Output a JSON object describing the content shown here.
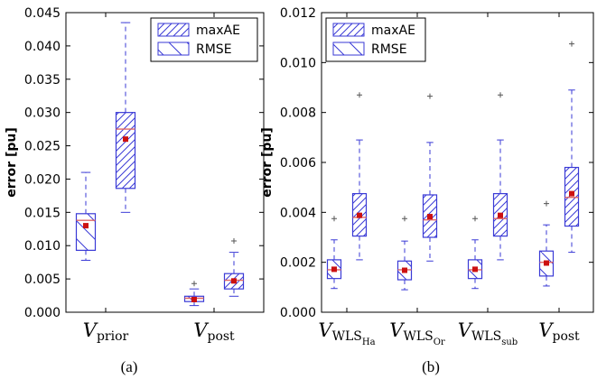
{
  "figure": {
    "colors": {
      "box": "#3a3ad6",
      "median": "#e06666",
      "mean": "#cc1111",
      "outlier": "#555555"
    }
  },
  "chart_data": [
    {
      "type": "box",
      "panel_label": "(a)",
      "ylabel": "error [pu]",
      "ylim": [
        0,
        0.045
      ],
      "yticks": [
        "0.000",
        "0.005",
        "0.010",
        "0.015",
        "0.020",
        "0.025",
        "0.030",
        "0.035",
        "0.040",
        "0.045"
      ],
      "legend": {
        "position": "top-right",
        "entries": [
          "maxAE",
          "RMSE"
        ]
      },
      "categories": [
        {
          "base": "V",
          "sub": "prior",
          "subsub": ""
        },
        {
          "base": "V",
          "sub": "post",
          "subsub": ""
        }
      ],
      "series": [
        {
          "name": "RMSE",
          "boxes": [
            {
              "whislo": 0.0078,
              "q1": 0.0093,
              "med": 0.0138,
              "q3": 0.0148,
              "whishi": 0.021,
              "mean": 0.013,
              "fliers": []
            },
            {
              "whislo": 0.001,
              "q1": 0.0016,
              "med": 0.0021,
              "q3": 0.0024,
              "whishi": 0.0035,
              "mean": 0.0019,
              "fliers": [
                0.0043
              ]
            }
          ]
        },
        {
          "name": "maxAE",
          "boxes": [
            {
              "whislo": 0.015,
              "q1": 0.0186,
              "med": 0.0275,
              "q3": 0.03,
              "whishi": 0.0435,
              "mean": 0.026,
              "fliers": []
            },
            {
              "whislo": 0.0024,
              "q1": 0.0035,
              "med": 0.0048,
              "q3": 0.0058,
              "whishi": 0.009,
              "mean": 0.0047,
              "fliers": [
                0.0107
              ]
            }
          ]
        }
      ]
    },
    {
      "type": "box",
      "panel_label": "(b)",
      "ylabel": "error [pu]",
      "ylim": [
        0,
        0.012
      ],
      "yticks": [
        "0.000",
        "0.002",
        "0.004",
        "0.006",
        "0.008",
        "0.010",
        "0.012"
      ],
      "legend": {
        "position": "top-left",
        "entries": [
          "maxAE",
          "RMSE"
        ]
      },
      "categories": [
        {
          "base": "V",
          "sub": "WLS",
          "subsub": "Ha"
        },
        {
          "base": "V",
          "sub": "WLS",
          "subsub": "Or"
        },
        {
          "base": "V",
          "sub": "WLS",
          "subsub": "sub"
        },
        {
          "base": "V",
          "sub": "post",
          "subsub": ""
        }
      ],
      "series": [
        {
          "name": "RMSE",
          "boxes": [
            {
              "whislo": 0.00095,
              "q1": 0.00135,
              "med": 0.0017,
              "q3": 0.0021,
              "whishi": 0.0029,
              "mean": 0.00172,
              "fliers": [
                0.00375
              ]
            },
            {
              "whislo": 0.0009,
              "q1": 0.0013,
              "med": 0.0017,
              "q3": 0.00205,
              "whishi": 0.00285,
              "mean": 0.00168,
              "fliers": [
                0.00375
              ]
            },
            {
              "whislo": 0.00095,
              "q1": 0.00135,
              "med": 0.0017,
              "q3": 0.0021,
              "whishi": 0.0029,
              "mean": 0.00172,
              "fliers": [
                0.00375
              ]
            },
            {
              "whislo": 0.00105,
              "q1": 0.00145,
              "med": 0.002,
              "q3": 0.00245,
              "whishi": 0.0035,
              "mean": 0.00197,
              "fliers": [
                0.00435
              ]
            }
          ]
        },
        {
          "name": "maxAE",
          "boxes": [
            {
              "whislo": 0.0021,
              "q1": 0.00305,
              "med": 0.0038,
              "q3": 0.00475,
              "whishi": 0.0069,
              "mean": 0.00388,
              "fliers": [
                0.0087
              ]
            },
            {
              "whislo": 0.00205,
              "q1": 0.003,
              "med": 0.0037,
              "q3": 0.0047,
              "whishi": 0.0068,
              "mean": 0.00383,
              "fliers": [
                0.00865
              ]
            },
            {
              "whislo": 0.0021,
              "q1": 0.00305,
              "med": 0.00375,
              "q3": 0.00475,
              "whishi": 0.0069,
              "mean": 0.00388,
              "fliers": [
                0.0087
              ]
            },
            {
              "whislo": 0.0024,
              "q1": 0.00345,
              "med": 0.0046,
              "q3": 0.0058,
              "whishi": 0.0089,
              "mean": 0.00475,
              "fliers": [
                0.01075
              ]
            }
          ]
        }
      ]
    }
  ]
}
